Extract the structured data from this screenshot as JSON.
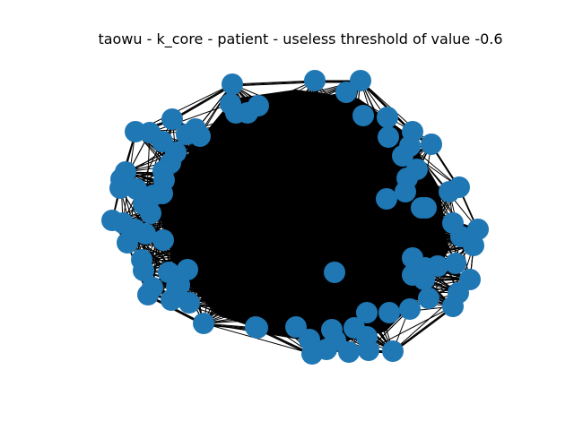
{
  "title": "taowu - k_core - patient - useless threshold of value -0.6",
  "graph": {
    "node_color": "#1f77b4",
    "edge_color": "#000000",
    "node_count": 100
  }
}
